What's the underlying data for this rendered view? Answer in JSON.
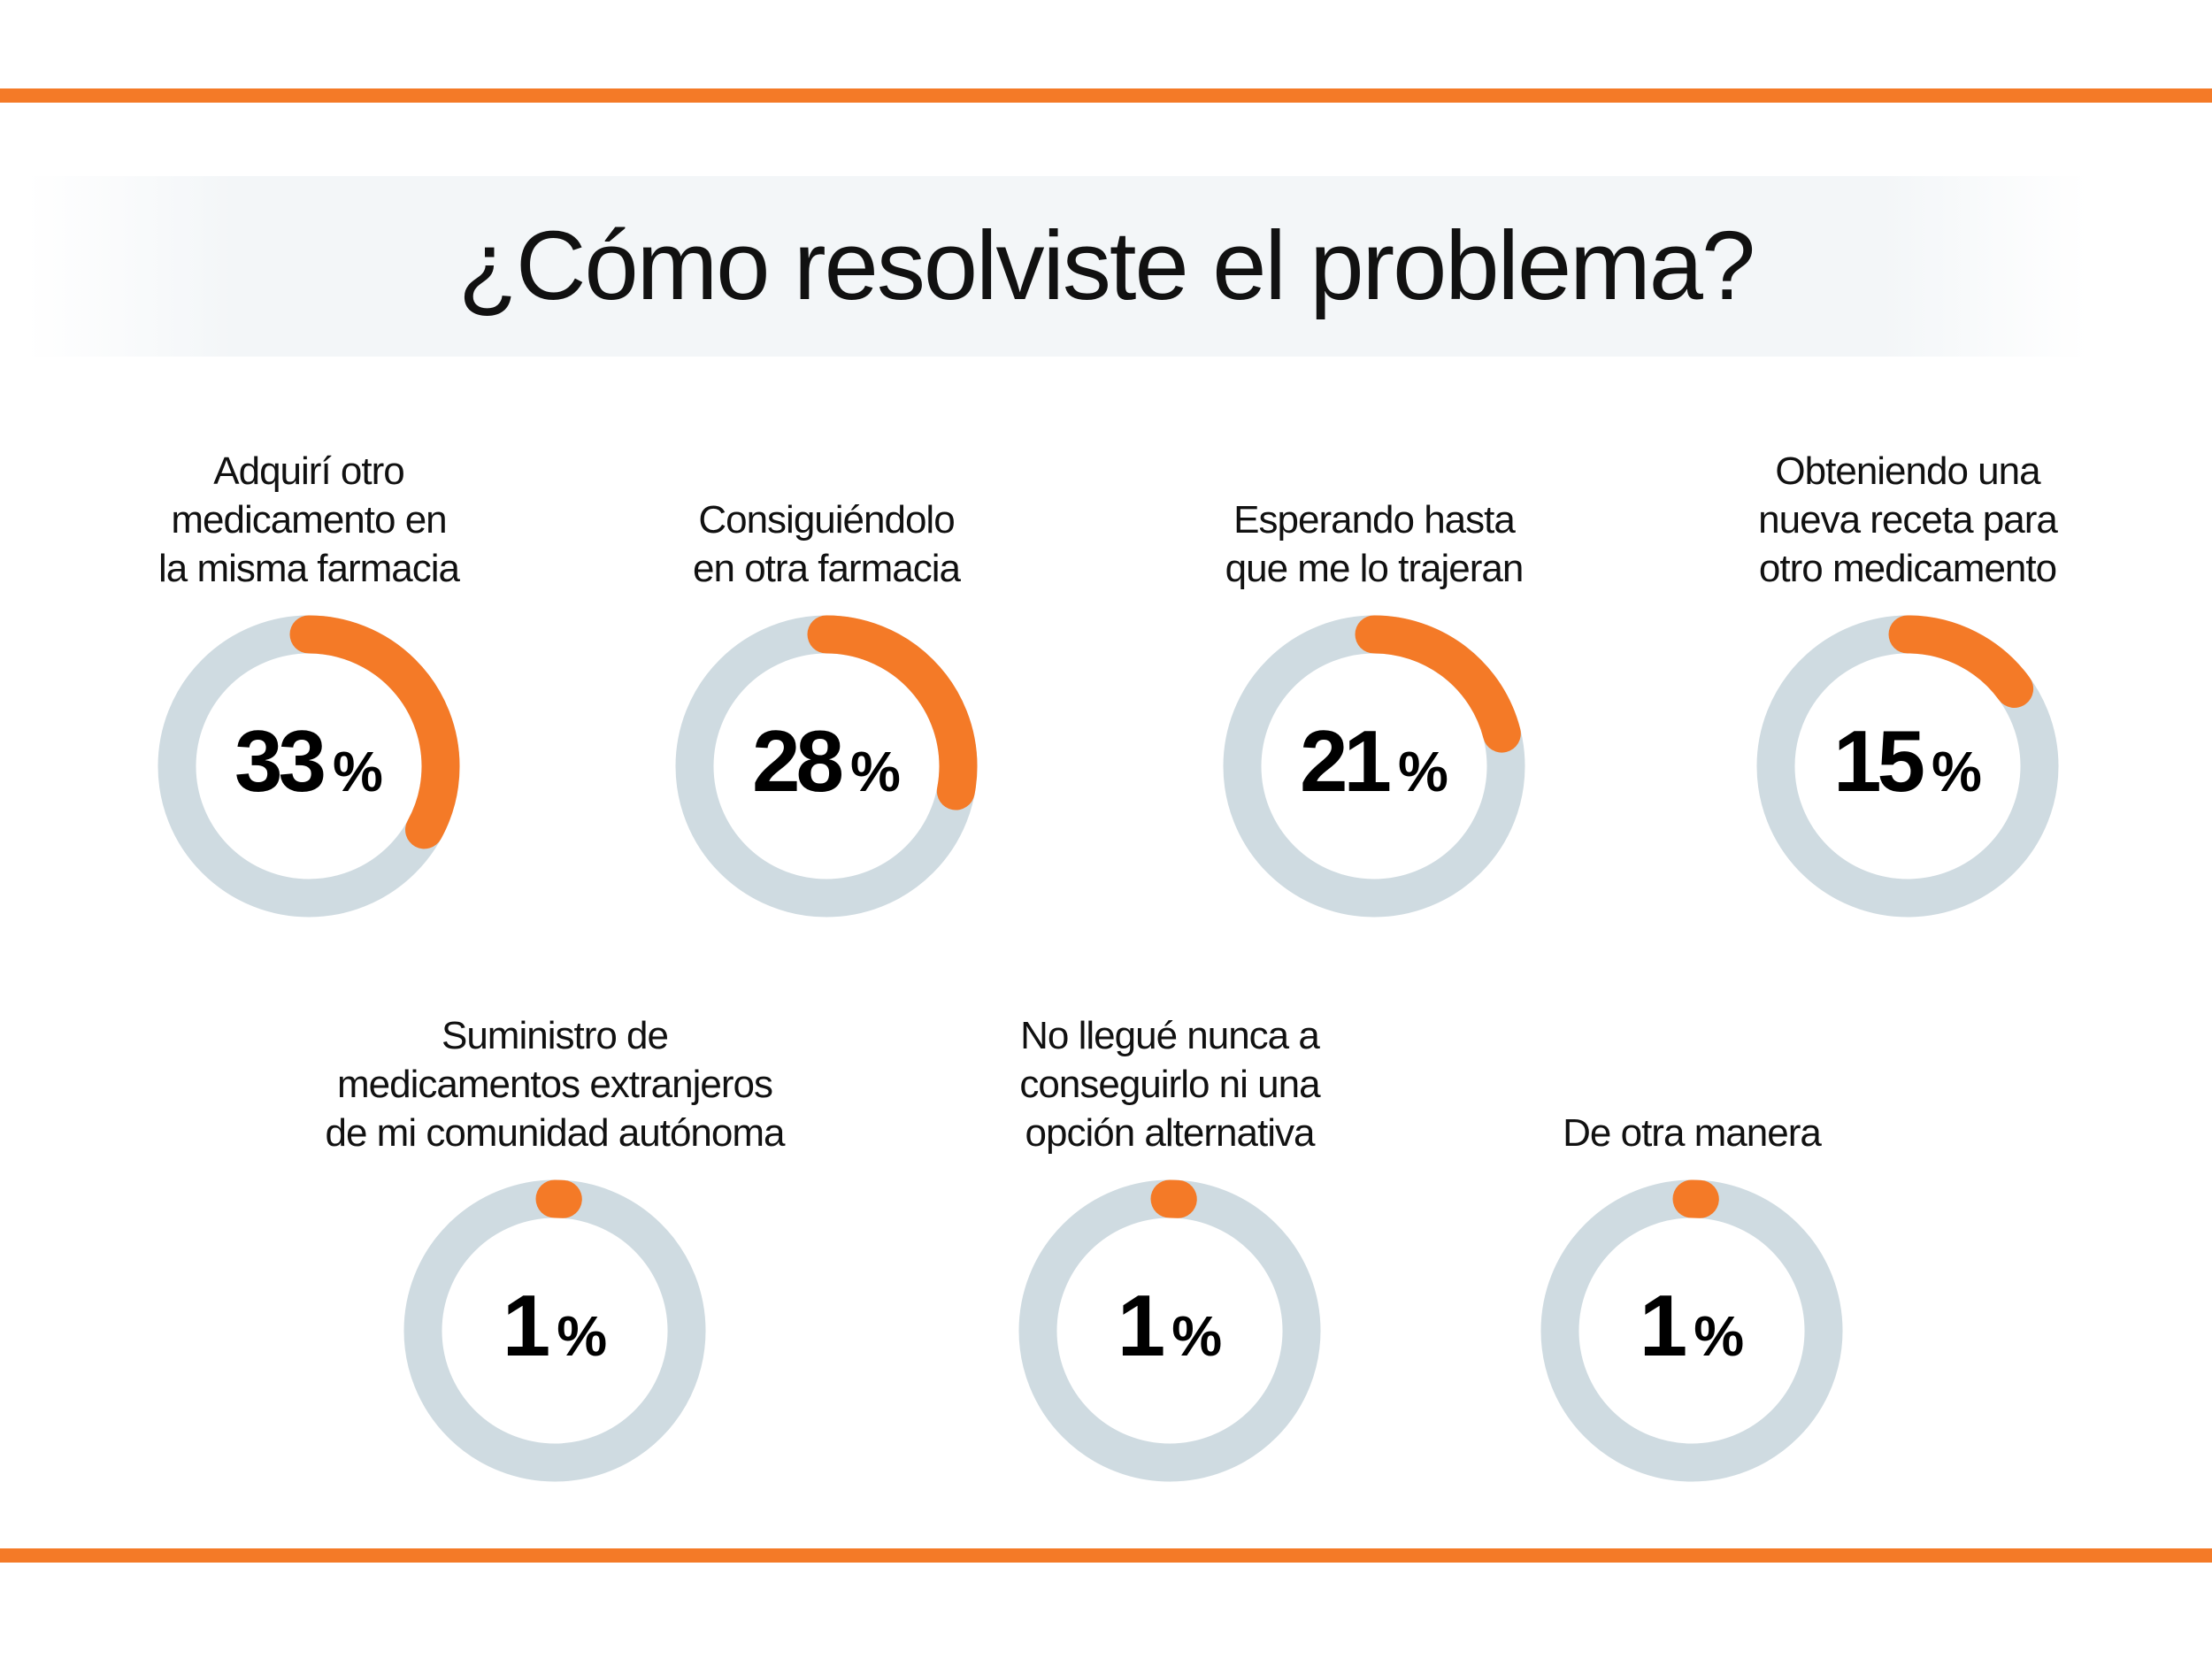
{
  "title": "¿Cómo resolviste el problema?",
  "colors": {
    "accent": "#f47a27",
    "track": "#cfdbe1",
    "title_band": "#f3f6f8"
  },
  "chart_data": {
    "type": "donut",
    "title": "¿Cómo resolviste el problema?",
    "unit": "%",
    "items": [
      {
        "label_lines": [
          "Adquirí otro",
          "medicamento en",
          "la misma farmacia"
        ],
        "value": 33
      },
      {
        "label_lines": [
          "Consiguiéndolo",
          "en otra farmacia"
        ],
        "value": 28
      },
      {
        "label_lines": [
          "Esperando hasta",
          "que me lo trajeran"
        ],
        "value": 21
      },
      {
        "label_lines": [
          "Obteniendo una",
          "nueva receta para",
          "otro medicamento"
        ],
        "value": 15
      },
      {
        "label_lines": [
          "Suministro de",
          "medicamentos extranjeros",
          "de mi comunidad autónoma"
        ],
        "value": 1
      },
      {
        "label_lines": [
          "No llegué nunca a",
          "conseguirlo ni una",
          "opción alternativa"
        ],
        "value": 1
      },
      {
        "label_lines": [
          "De otra manera"
        ],
        "value": 1
      }
    ]
  }
}
